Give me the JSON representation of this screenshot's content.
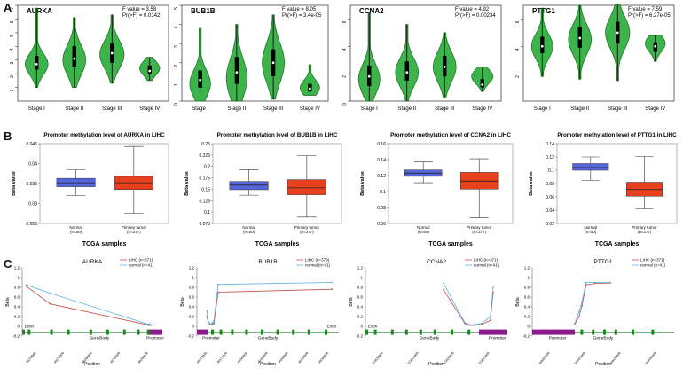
{
  "panel_labels": [
    "A",
    "B",
    "C"
  ],
  "colors": {
    "violin": "#3cb44b",
    "violin_edge": "#1e6b1e",
    "normal_box": "#5566dd",
    "tumor_box": "#e8401c",
    "lihc_line": "#c0504d",
    "normal_line": "#5bb2e0",
    "exon": "#1a8a1a",
    "promoter": "#8b1a8b"
  },
  "chart_data": [
    {
      "type": "violin",
      "panel": "A",
      "title": "AURKA",
      "stat_f": "F value = 3.58",
      "stat_p": "Pr(>F) = 0.0142",
      "categories": [
        "Stage I",
        "Stage II",
        "Stage III",
        "Stage IV"
      ],
      "ylim": [
        0,
        7
      ],
      "yticks": [
        "1",
        "2",
        "3",
        "4",
        "5",
        "6",
        "7"
      ],
      "violins": [
        {
          "min": 1.0,
          "q1": 2.3,
          "median": 2.7,
          "q3": 3.3,
          "max": 6.8,
          "mode": 2.7,
          "width": 0.8
        },
        {
          "min": 1.0,
          "q1": 2.5,
          "median": 3.1,
          "q3": 4.0,
          "max": 6.1,
          "mode": 3.0,
          "width": 0.8
        },
        {
          "min": 1.3,
          "q1": 2.8,
          "median": 3.5,
          "q3": 4.2,
          "max": 6.3,
          "mode": 3.4,
          "width": 0.85
        },
        {
          "min": 1.5,
          "q1": 2.0,
          "median": 2.2,
          "q3": 2.6,
          "max": 3.2,
          "mode": 2.4,
          "width": 0.7
        }
      ]
    },
    {
      "type": "violin",
      "panel": "A",
      "title": "BUB1B",
      "stat_f": "F value = 8.05",
      "stat_p": "Pr(>F) = 3.4e-05",
      "categories": [
        "Stage I",
        "Stage II",
        "Stage III",
        "Stage IV"
      ],
      "ylim": [
        0,
        5
      ],
      "yticks": [
        "0",
        "1",
        "2",
        "3",
        "4",
        "5"
      ],
      "violins": [
        {
          "min": 0.0,
          "q1": 0.7,
          "median": 1.1,
          "q3": 1.6,
          "max": 3.8,
          "mode": 0.9,
          "width": 0.75
        },
        {
          "min": 0.0,
          "q1": 0.9,
          "median": 1.5,
          "q3": 2.3,
          "max": 4.0,
          "mode": 1.2,
          "width": 0.75
        },
        {
          "min": 0.1,
          "q1": 1.3,
          "median": 2.0,
          "q3": 2.7,
          "max": 4.5,
          "mode": 2.0,
          "width": 0.8
        },
        {
          "min": 0.3,
          "q1": 0.5,
          "median": 0.65,
          "q3": 0.9,
          "max": 1.9,
          "mode": 0.7,
          "width": 0.7
        }
      ]
    },
    {
      "type": "violin",
      "panel": "A",
      "title": "CCNA2",
      "stat_f": "F value = 4.92",
      "stat_p": "Pr(>F) = 0.00234",
      "categories": [
        "Stage I",
        "Stage II",
        "Stage III",
        "Stage IV"
      ],
      "ylim": [
        0,
        7
      ],
      "yticks": [
        "0",
        "2",
        "4",
        "6"
      ],
      "violins": [
        {
          "min": 0.0,
          "q1": 1.1,
          "median": 1.8,
          "q3": 2.6,
          "max": 6.5,
          "mode": 1.6,
          "width": 0.75
        },
        {
          "min": 0.0,
          "q1": 1.5,
          "median": 2.1,
          "q3": 2.9,
          "max": 5.6,
          "mode": 2.1,
          "width": 0.8
        },
        {
          "min": 0.3,
          "q1": 1.8,
          "median": 2.5,
          "q3": 3.3,
          "max": 5.0,
          "mode": 2.5,
          "width": 0.8
        },
        {
          "min": 0.7,
          "q1": 1.0,
          "median": 1.2,
          "q3": 1.6,
          "max": 2.5,
          "mode": 1.8,
          "width": 0.75
        }
      ]
    },
    {
      "type": "violin",
      "panel": "A",
      "title": "PTTG1",
      "stat_f": "F value = 7.59",
      "stat_p": "Pr(>F) = 6.27e-05",
      "categories": [
        "Stage I",
        "Stage II",
        "Stage III",
        "Stage IV"
      ],
      "ylim": [
        0,
        7
      ],
      "yticks": [
        "2",
        "4",
        "6"
      ],
      "violins": [
        {
          "min": 1.8,
          "q1": 3.5,
          "median": 4.0,
          "q3": 4.7,
          "max": 6.8,
          "mode": 4.0,
          "width": 0.75
        },
        {
          "min": 1.6,
          "q1": 3.9,
          "median": 4.6,
          "q3": 5.4,
          "max": 7.0,
          "mode": 4.5,
          "width": 0.8
        },
        {
          "min": 1.5,
          "q1": 4.2,
          "median": 5.0,
          "q3": 5.8,
          "max": 7.1,
          "mode": 5.0,
          "width": 0.85
        },
        {
          "min": 2.9,
          "q1": 3.6,
          "median": 4.0,
          "q3": 4.3,
          "max": 4.8,
          "mode": 4.2,
          "width": 0.7
        }
      ]
    },
    {
      "type": "box",
      "panel": "B",
      "title": "Promoter methylation level of AURKA in LIHC",
      "xlabel": "TCGA samples",
      "ylabel": "Beta value",
      "ylim": [
        0.025,
        0.045
      ],
      "yticks": [
        "0.025",
        "0.03",
        "0.035",
        "0.04",
        "0.045"
      ],
      "categories": [
        "Normal",
        "Primary tumor"
      ],
      "counts": [
        "(n=50)",
        "(n=377)"
      ],
      "boxes": [
        {
          "min": 0.032,
          "q1": 0.0342,
          "median": 0.0352,
          "q3": 0.0363,
          "max": 0.0385
        },
        {
          "min": 0.0275,
          "q1": 0.0335,
          "median": 0.0352,
          "q3": 0.0368,
          "max": 0.0443
        }
      ]
    },
    {
      "type": "box",
      "panel": "B",
      "title": "Promoter methylation level of BUB1B in LIHC",
      "xlabel": "TCGA samples",
      "ylabel": "Beta value",
      "ylim": [
        0.075,
        0.25
      ],
      "yticks": [
        "0.075",
        "0.1",
        "0.125",
        "0.15",
        "0.175",
        "0.2",
        "0.225",
        "0.25"
      ],
      "categories": [
        "Normal",
        "Primary tumor"
      ],
      "counts": [
        "(n=50)",
        "(n=377)"
      ],
      "boxes": [
        {
          "min": 0.137,
          "q1": 0.149,
          "median": 0.159,
          "q3": 0.167,
          "max": 0.193
        },
        {
          "min": 0.089,
          "q1": 0.138,
          "median": 0.153,
          "q3": 0.171,
          "max": 0.224
        }
      ]
    },
    {
      "type": "box",
      "panel": "B",
      "title": "Promoter methylation level of CCNA2 in LIHC",
      "xlabel": "TCGA samples",
      "ylabel": "Beta value",
      "ylim": [
        0.06,
        0.16
      ],
      "yticks": [
        "0.06",
        "0.08",
        "0.1",
        "0.12",
        "0.14",
        "0.16"
      ],
      "categories": [
        "Normal",
        "Primary tumor"
      ],
      "counts": [
        "(n=50)",
        "(n=377)"
      ],
      "boxes": [
        {
          "min": 0.111,
          "q1": 0.119,
          "median": 0.123,
          "q3": 0.127,
          "max": 0.137
        },
        {
          "min": 0.067,
          "q1": 0.103,
          "median": 0.113,
          "q3": 0.124,
          "max": 0.141
        }
      ]
    },
    {
      "type": "box",
      "panel": "B",
      "title": "Promoter methylation level of PTTG1 in LIHC",
      "xlabel": "TCGA samples",
      "ylabel": "Beta value",
      "ylim": [
        0.02,
        0.14
      ],
      "yticks": [
        "0.02",
        "0.04",
        "0.06",
        "0.08",
        "0.1",
        "0.12",
        "0.14"
      ],
      "categories": [
        "Normal",
        "Primary tumor"
      ],
      "counts": [
        "(n=50)",
        "(n=377)"
      ],
      "boxes": [
        {
          "min": 0.085,
          "q1": 0.1,
          "median": 0.104,
          "q3": 0.11,
          "max": 0.12
        },
        {
          "min": 0.042,
          "q1": 0.061,
          "median": 0.071,
          "q3": 0.082,
          "max": 0.121
        }
      ]
    },
    {
      "type": "line",
      "panel": "C",
      "title": "AURKA",
      "xlabel": "Position",
      "ylabel": "Beta",
      "ylim": [
        -0.2,
        1.2
      ],
      "yticks": [
        "-0.2",
        "0",
        "0.2",
        "0.4",
        "0.6",
        "0.8",
        "1",
        "1.2"
      ],
      "series": [
        {
          "name": "LIHC (n=371)",
          "x": [
            0.03,
            0.2,
            0.88,
            0.9,
            0.91,
            0.92
          ],
          "y": [
            0.82,
            0.46,
            0.04,
            0.02,
            0.03,
            0.02
          ]
        },
        {
          "name": "normal (n=41)",
          "x": [
            0.03,
            0.2,
            0.88,
            0.9,
            0.91,
            0.92
          ],
          "y": [
            0.85,
            0.68,
            0.06,
            0.04,
            0.05,
            0.03
          ]
        }
      ],
      "gene_labels": [
        {
          "text": "GeneBody",
          "x": 0.55
        },
        {
          "text": "Promoter",
          "x": 0.95
        }
      ],
      "exon_labels": [
        {
          "text": "Exon",
          "x": 0.05
        }
      ],
      "promoter_ranges": [
        [
          0.9,
          1.0
        ]
      ],
      "exons": [
        0.0,
        0.04,
        0.2,
        0.32,
        0.48,
        0.6,
        0.72,
        0.82,
        0.89
      ],
      "xticks": [
        "46270000",
        "46275000",
        "46280000",
        "46285000",
        "46290000"
      ]
    },
    {
      "type": "line",
      "panel": "C",
      "title": "BUB1B",
      "xlabel": "Position",
      "ylabel": "Beta",
      "ylim": [
        -0.2,
        1.2
      ],
      "yticks": [
        "-0.2",
        "0",
        "0.2",
        "0.4",
        "0.6",
        "0.8",
        "1",
        "1.2"
      ],
      "series": [
        {
          "name": "LIHC (n=379)",
          "x": [
            0.07,
            0.08,
            0.09,
            0.1,
            0.11,
            0.12,
            0.15,
            0.95
          ],
          "y": [
            0.2,
            0.08,
            0.05,
            0.03,
            0.05,
            0.06,
            0.7,
            0.76
          ]
        },
        {
          "name": "normal (n=41)",
          "x": [
            0.07,
            0.08,
            0.09,
            0.1,
            0.11,
            0.12,
            0.15,
            0.95
          ],
          "y": [
            0.32,
            0.1,
            0.06,
            0.04,
            0.08,
            0.12,
            0.86,
            0.9
          ]
        }
      ],
      "gene_labels": [
        {
          "text": "Promoter",
          "x": 0.1
        },
        {
          "text": "GeneBody",
          "x": 0.5
        }
      ],
      "exon_labels": [
        {
          "text": "Exon",
          "x": 0.95
        }
      ],
      "promoter_ranges": [
        [
          0.0,
          0.08
        ]
      ],
      "exons": [
        0.1,
        0.16,
        0.24,
        0.34,
        0.45,
        0.56,
        0.67,
        0.78,
        0.9
      ],
      "xticks": [
        "40170000",
        "40175000",
        "40180000",
        "40185000",
        "40190000",
        "40195000",
        "40200000"
      ]
    },
    {
      "type": "line",
      "panel": "C",
      "title": "CCNA2",
      "xlabel": "Position",
      "ylabel": "Beta",
      "ylim": [
        -0.2,
        1.2
      ],
      "yticks": [
        "-0.2",
        "0",
        "0.2",
        "0.4",
        "0.6",
        "0.8",
        "1",
        "1.2"
      ],
      "series": [
        {
          "name": "LIHC (n=371)",
          "x": [
            0.55,
            0.7,
            0.72,
            0.74,
            0.76,
            0.78,
            0.8,
            0.82,
            0.88,
            0.9
          ],
          "y": [
            0.75,
            0.06,
            0.03,
            0.02,
            0.02,
            0.03,
            0.03,
            0.04,
            0.12,
            0.7
          ]
        },
        {
          "name": "normal (n=41)",
          "x": [
            0.55,
            0.7,
            0.72,
            0.74,
            0.76,
            0.78,
            0.8,
            0.82,
            0.88,
            0.9
          ],
          "y": [
            0.88,
            0.08,
            0.05,
            0.03,
            0.03,
            0.04,
            0.05,
            0.06,
            0.2,
            0.8
          ]
        }
      ],
      "gene_labels": [
        {
          "text": "GeneBody",
          "x": 0.45
        },
        {
          "text": "Promoter",
          "x": 0.93
        }
      ],
      "exon_labels": [
        {
          "text": "Exon",
          "x": 0.05
        }
      ],
      "promoter_ranges": [
        [
          0.8,
          1.0
        ]
      ],
      "exons": [
        0.0,
        0.06,
        0.18,
        0.28,
        0.38,
        0.48,
        0.6,
        0.72
      ],
      "xticks": [
        "122610000",
        "122615000",
        "122620000",
        "122625000"
      ]
    },
    {
      "type": "line",
      "panel": "C",
      "title": "PTTG1",
      "xlabel": "Position",
      "ylabel": "Beta",
      "ylim": [
        -0.2,
        1.2
      ],
      "yticks": [
        "-0.2",
        "0",
        "0.2",
        "0.4",
        "0.6",
        "0.8",
        "1",
        "1.2"
      ],
      "series": [
        {
          "name": "LIHC (n=371)",
          "x": [
            0.3,
            0.33,
            0.35,
            0.38,
            0.44,
            0.55
          ],
          "y": [
            0.05,
            0.2,
            0.42,
            0.85,
            0.88,
            0.89
          ]
        },
        {
          "name": "normal (n=41)",
          "x": [
            0.3,
            0.33,
            0.35,
            0.38,
            0.44,
            0.55
          ],
          "y": [
            0.06,
            0.3,
            0.5,
            0.9,
            0.9,
            0.9
          ]
        }
      ],
      "gene_labels": [
        {
          "text": "Promoter",
          "x": 0.18
        },
        {
          "text": "GeneBody",
          "x": 0.5
        }
      ],
      "exon_labels": [],
      "promoter_ranges": [
        [
          0.0,
          0.3
        ]
      ],
      "exons": [
        0.34,
        0.42,
        0.5,
        0.58,
        0.7,
        0.84
      ],
      "xticks": [
        "160420000",
        "160425000",
        "160430000",
        "160435000"
      ]
    }
  ]
}
